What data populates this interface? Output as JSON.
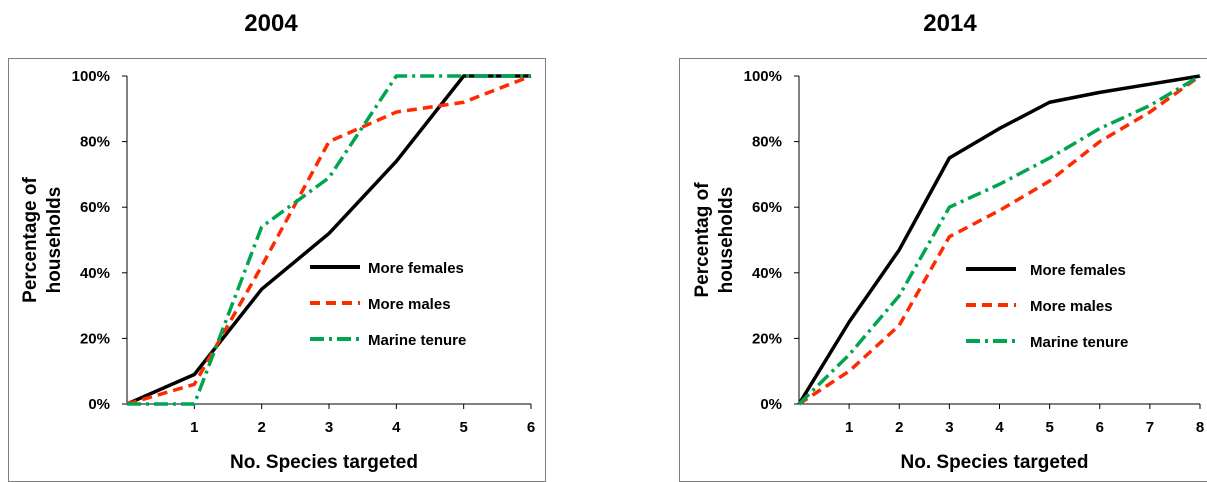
{
  "chart_data": [
    {
      "type": "line",
      "title": "2004",
      "xlabel": "No. Species targeted",
      "ylabel": [
        "Percentage of",
        "households"
      ],
      "x": [
        0,
        1,
        2,
        3,
        4,
        5,
        6
      ],
      "x_tick_labels": [
        "1",
        "2",
        "3",
        "4",
        "5",
        "6"
      ],
      "y_tick_labels": [
        "0%",
        "20%",
        "40%",
        "60%",
        "80%",
        "100%"
      ],
      "ylim": [
        0,
        100
      ],
      "xlim": [
        0,
        6
      ],
      "legend_position": "center-right",
      "series": [
        {
          "name": "More females",
          "color": "#000000",
          "style": "solid",
          "values": [
            0,
            9,
            35,
            52,
            74,
            100,
            100
          ]
        },
        {
          "name": "More males",
          "color": "#ff2a00",
          "style": "dashed",
          "values": [
            0,
            6,
            42,
            80,
            89,
            92,
            100
          ]
        },
        {
          "name": "Marine tenure",
          "color": "#00a550",
          "style": "dashdot",
          "values": [
            0,
            0,
            54,
            69,
            100,
            100,
            100
          ]
        }
      ]
    },
    {
      "type": "line",
      "title": "2014",
      "xlabel": "No. Species targeted",
      "ylabel": [
        "Percentag of",
        "households"
      ],
      "x": [
        0,
        1,
        2,
        3,
        4,
        5,
        6,
        7,
        8
      ],
      "x_tick_labels": [
        "1",
        "2",
        "3",
        "4",
        "5",
        "6",
        "7",
        "8"
      ],
      "y_tick_labels": [
        "0%",
        "20%",
        "40%",
        "60%",
        "80%",
        "100%"
      ],
      "ylim": [
        0,
        100
      ],
      "xlim": [
        0,
        8
      ],
      "legend_position": "center-right",
      "series": [
        {
          "name": "More females",
          "color": "#000000",
          "style": "solid",
          "values": [
            0,
            25,
            47,
            75,
            84,
            92,
            95,
            97.5,
            100
          ]
        },
        {
          "name": "More males",
          "color": "#ff2a00",
          "style": "dashed",
          "values": [
            0,
            10,
            24,
            51,
            59,
            68,
            80,
            89,
            100
          ]
        },
        {
          "name": "Marine tenure",
          "color": "#00a550",
          "style": "dashdot",
          "values": [
            0,
            15,
            33,
            60,
            67,
            75,
            84,
            91,
            100
          ]
        }
      ]
    }
  ]
}
